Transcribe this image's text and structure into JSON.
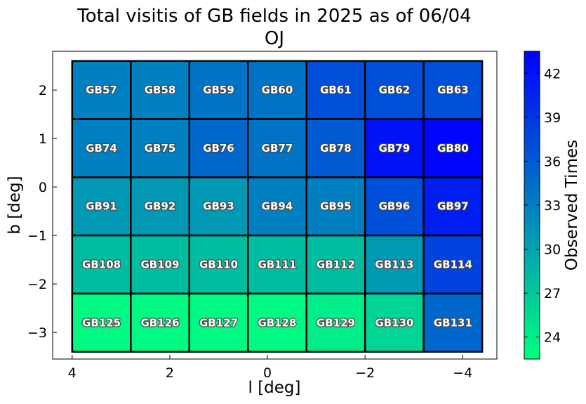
{
  "chart_data": {
    "type": "heatmap",
    "title": "Total visitis of GB fields in 2025 as of 06/04",
    "subtitle": "OJ",
    "xlabel": "l [deg]",
    "ylabel": "b [deg]",
    "colorbar_label": "Observed Times",
    "xlim": [
      4.4,
      -4.7
    ],
    "ylim": [
      -3.55,
      2.8
    ],
    "x_ticks": [
      {
        "value": 4,
        "label": "4"
      },
      {
        "value": 2,
        "label": "2"
      },
      {
        "value": 0,
        "label": "0"
      },
      {
        "value": -2,
        "label": "−2"
      },
      {
        "value": -4,
        "label": "−4"
      }
    ],
    "y_ticks": [
      {
        "value": 2,
        "label": "2"
      },
      {
        "value": 1,
        "label": "1"
      },
      {
        "value": 0,
        "label": "0"
      },
      {
        "value": -1,
        "label": "−1"
      },
      {
        "value": -2,
        "label": "−2"
      },
      {
        "value": -3,
        "label": "−3"
      }
    ],
    "cell_edges_x": [
      4.0,
      2.8,
      1.6,
      0.4,
      -0.8,
      -2.0,
      -3.2,
      -4.4
    ],
    "cell_edges_y": [
      2.6,
      1.4,
      0.2,
      -1.0,
      -2.2,
      -3.4
    ],
    "color_range": [
      22.5,
      43.5
    ],
    "color_low": "#00ff80",
    "color_high": "#0000ff",
    "colorbar_ticks": [
      {
        "value": 24,
        "label": "24"
      },
      {
        "value": 27,
        "label": "27"
      },
      {
        "value": 30,
        "label": "30"
      },
      {
        "value": 33,
        "label": "33"
      },
      {
        "value": 36,
        "label": "36"
      },
      {
        "value": 39,
        "label": "39"
      },
      {
        "value": 42,
        "label": "42"
      }
    ],
    "cells": [
      [
        {
          "name": "GB57",
          "value": 33
        },
        {
          "name": "GB58",
          "value": 33
        },
        {
          "name": "GB59",
          "value": 34
        },
        {
          "name": "GB60",
          "value": 34
        },
        {
          "name": "GB61",
          "value": 37
        },
        {
          "name": "GB62",
          "value": 37
        },
        {
          "name": "GB63",
          "value": 37
        }
      ],
      [
        {
          "name": "GB74",
          "value": 33
        },
        {
          "name": "GB75",
          "value": 33
        },
        {
          "name": "GB76",
          "value": 35
        },
        {
          "name": "GB77",
          "value": 34
        },
        {
          "name": "GB78",
          "value": 36
        },
        {
          "name": "GB79",
          "value": 42
        },
        {
          "name": "GB80",
          "value": 43
        }
      ],
      [
        {
          "name": "GB91",
          "value": 31
        },
        {
          "name": "GB92",
          "value": 31
        },
        {
          "name": "GB93",
          "value": 31
        },
        {
          "name": "GB94",
          "value": 33
        },
        {
          "name": "GB95",
          "value": 33
        },
        {
          "name": "GB96",
          "value": 37
        },
        {
          "name": "GB97",
          "value": 41
        }
      ],
      [
        {
          "name": "GB108",
          "value": 28
        },
        {
          "name": "GB109",
          "value": 28
        },
        {
          "name": "GB110",
          "value": 28
        },
        {
          "name": "GB111",
          "value": 28
        },
        {
          "name": "GB112",
          "value": 28
        },
        {
          "name": "GB113",
          "value": 31
        },
        {
          "name": "GB114",
          "value": 38
        }
      ],
      [
        {
          "name": "GB125",
          "value": 23
        },
        {
          "name": "GB126",
          "value": 23
        },
        {
          "name": "GB127",
          "value": 23
        },
        {
          "name": "GB128",
          "value": 23
        },
        {
          "name": "GB129",
          "value": 24
        },
        {
          "name": "GB130",
          "value": 26
        },
        {
          "name": "GB131",
          "value": 35
        }
      ]
    ]
  }
}
